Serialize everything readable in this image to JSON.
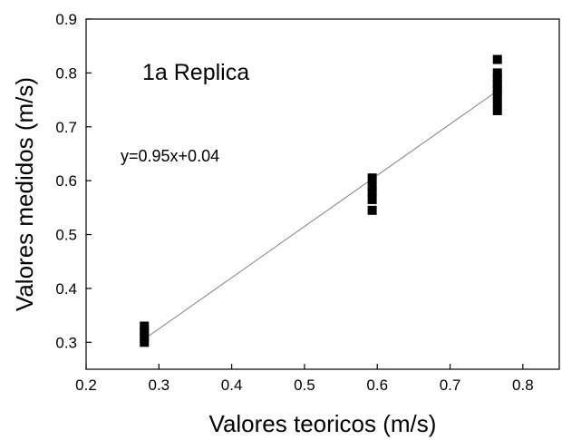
{
  "chart_data": {
    "type": "scatter",
    "title": "",
    "xlabel": "Valores teoricos (m/s)",
    "ylabel": "Valores medidos (m/s)",
    "xlim": [
      0.2,
      0.85
    ],
    "ylim": [
      0.25,
      0.9
    ],
    "xticks": [
      0.2,
      0.3,
      0.4,
      0.5,
      0.6,
      0.7,
      0.8
    ],
    "yticks": [
      0.3,
      0.4,
      0.5,
      0.6,
      0.7,
      0.8,
      0.9
    ],
    "xtick_labels": [
      "0.2",
      "0.3",
      "0.4",
      "0.5",
      "0.6",
      "0.7",
      "0.8"
    ],
    "ytick_labels": [
      "0.3",
      "0.4",
      "0.5",
      "0.6",
      "0.7",
      "0.8",
      "0.9"
    ],
    "grid": false,
    "series": [
      {
        "marker": "square",
        "color": "#000000",
        "points": [
          {
            "x": 0.28,
            "y": 0.3
          },
          {
            "x": 0.28,
            "y": 0.31
          },
          {
            "x": 0.28,
            "y": 0.32
          },
          {
            "x": 0.28,
            "y": 0.33
          },
          {
            "x": 0.593,
            "y": 0.545
          },
          {
            "x": 0.593,
            "y": 0.565
          },
          {
            "x": 0.593,
            "y": 0.58
          },
          {
            "x": 0.593,
            "y": 0.59
          },
          {
            "x": 0.593,
            "y": 0.605
          },
          {
            "x": 0.765,
            "y": 0.73
          },
          {
            "x": 0.765,
            "y": 0.745
          },
          {
            "x": 0.765,
            "y": 0.76
          },
          {
            "x": 0.765,
            "y": 0.77
          },
          {
            "x": 0.765,
            "y": 0.78
          },
          {
            "x": 0.765,
            "y": 0.79
          },
          {
            "x": 0.765,
            "y": 0.8
          },
          {
            "x": 0.765,
            "y": 0.825
          }
        ]
      }
    ],
    "fit_line": {
      "slope": 0.95,
      "intercept": 0.04,
      "x_range": [
        0.28,
        0.765
      ],
      "color": "#808080"
    },
    "annotations": [
      {
        "text": "1a Replica",
        "style": "title"
      },
      {
        "text": "y=0.95x+0.04",
        "style": "equation"
      }
    ]
  }
}
